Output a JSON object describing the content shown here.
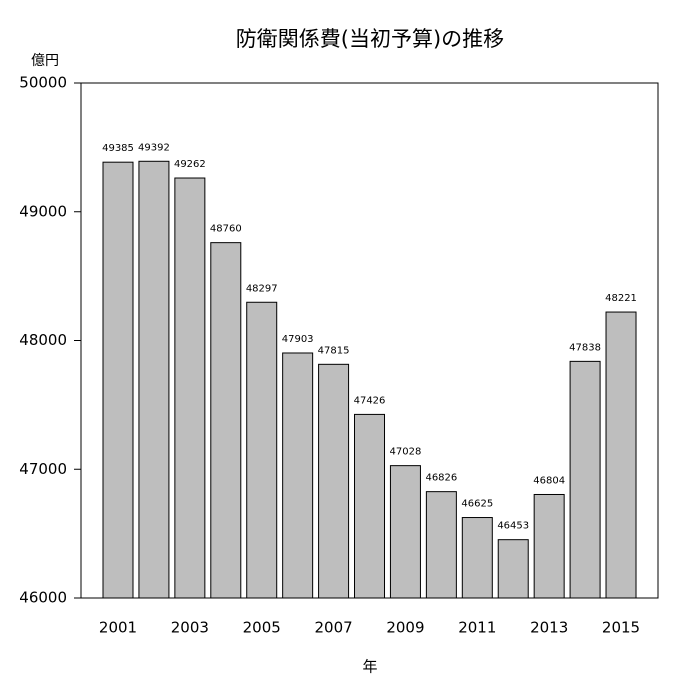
{
  "chart_data": {
    "type": "bar",
    "title": "防衛関係費(当初予算)の推移",
    "y_label": "億円",
    "x_label": "年",
    "categories": [
      "2001",
      null,
      "2003",
      null,
      "2005",
      null,
      "2007",
      null,
      "2009",
      null,
      "2011",
      null,
      "2013",
      null,
      "2015"
    ],
    "values": [
      49385,
      49392,
      49262,
      48760,
      48297,
      47903,
      47815,
      47426,
      47028,
      46826,
      46625,
      46453,
      46804,
      47838,
      48221
    ],
    "color": "#bebebe",
    "ylim": [
      46000,
      50000
    ],
    "yticks": [
      46000,
      47000,
      48000,
      49000,
      50000
    ]
  }
}
